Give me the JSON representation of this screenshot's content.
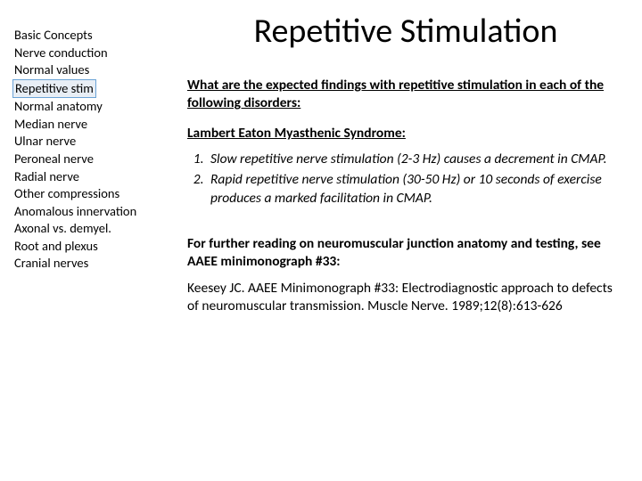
{
  "sidebar": {
    "items": [
      {
        "label": "Basic Concepts",
        "active": false
      },
      {
        "label": "Nerve conduction",
        "active": false
      },
      {
        "label": "Normal values",
        "active": false
      },
      {
        "label": "Repetitive stim",
        "active": true
      },
      {
        "label": "Normal anatomy",
        "active": false
      },
      {
        "label": "Median nerve",
        "active": false
      },
      {
        "label": "Ulnar nerve",
        "active": false
      },
      {
        "label": "Peroneal nerve",
        "active": false
      },
      {
        "label": "Radial nerve",
        "active": false
      },
      {
        "label": "Other compressions",
        "active": false
      },
      {
        "label": "Anomalous innervation",
        "active": false
      },
      {
        "label": "Axonal vs. demyel.",
        "active": false
      },
      {
        "label": "Root and plexus",
        "active": false
      },
      {
        "label": "Cranial nerves",
        "active": false
      }
    ]
  },
  "main": {
    "title": "Repetitive Stimulation",
    "question": "What are the expected findings with repetitive stimulation in each of the following disorders:",
    "subheading": "Lambert Eaton Myasthenic Syndrome:",
    "list": [
      "Slow repetitive nerve stimulation (2-3 Hz) causes a decrement in CMAP.",
      "Rapid repetitive nerve stimulation (30-50 Hz) or 10 seconds of exercise produces a marked facilitation in CMAP."
    ],
    "reading_intro": "For further reading on neuromuscular junction anatomy and testing, see AAEE minimonograph #33:",
    "reference": "Keesey JC. AAEE Minimonograph #33: Electrodiagnostic approach to defects of neuromuscular transmission. Muscle Nerve. 1989;12(8):613-626"
  }
}
